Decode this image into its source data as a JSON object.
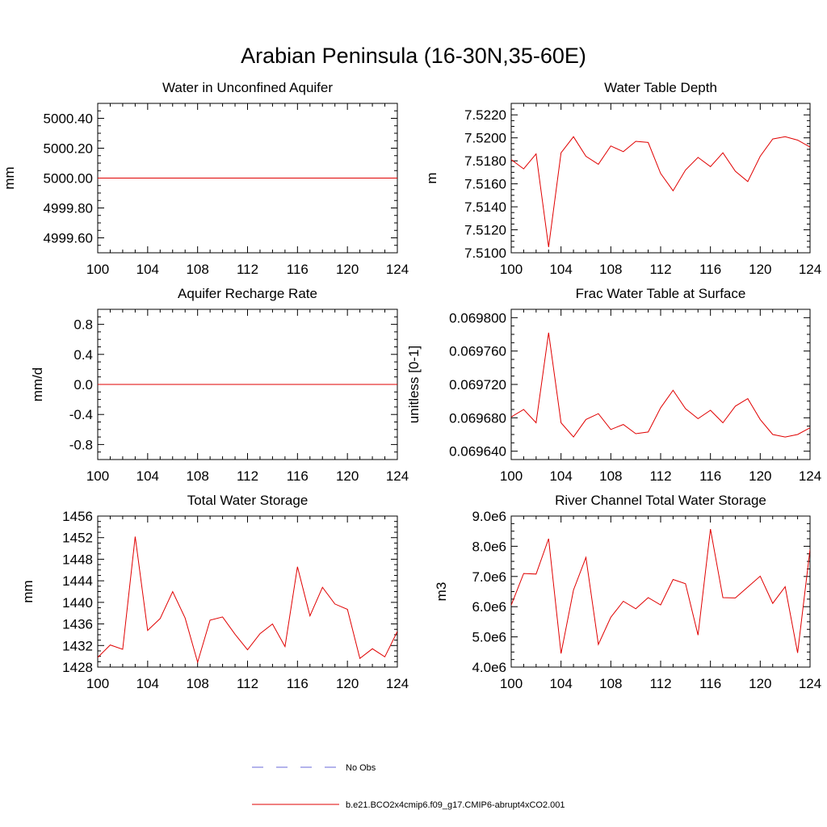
{
  "figure": {
    "title": "Arabian Peninsula (16-30N,35-60E)"
  },
  "legend": {
    "items": [
      {
        "label": "No Obs",
        "color": "#6a6ad8",
        "dash": true
      },
      {
        "label": "b.e21.BCO2x4cmip6.f09_g17.CMIP6-abrupt4xCO2.001",
        "color": "#e00000",
        "dash": false
      }
    ]
  },
  "chart_data": [
    {
      "type": "line",
      "title": "Water in Unconfined Aquifer",
      "ylabel": "mm",
      "xlim": [
        100,
        124
      ],
      "ylim": [
        4999.5,
        5000.5
      ],
      "xticks": [
        "100",
        "104",
        "108",
        "112",
        "116",
        "120",
        "124"
      ],
      "yticks": [
        "4999.60",
        "4999.80",
        "5000.00",
        "5000.20",
        "5000.40"
      ],
      "ytick_values": [
        4999.6,
        4999.8,
        5000.0,
        5000.2,
        5000.4
      ],
      "series": [
        {
          "color": "#e00000",
          "x": [
            100,
            101,
            102,
            103,
            104,
            105,
            106,
            107,
            108,
            109,
            110,
            111,
            112,
            113,
            114,
            115,
            116,
            117,
            118,
            119,
            120,
            121,
            122,
            123,
            124
          ],
          "y": [
            5000,
            5000,
            5000,
            5000,
            5000,
            5000,
            5000,
            5000,
            5000,
            5000,
            5000,
            5000,
            5000,
            5000,
            5000,
            5000,
            5000,
            5000,
            5000,
            5000,
            5000,
            5000,
            5000,
            5000,
            5000
          ]
        }
      ]
    },
    {
      "type": "line",
      "title": "Water Table Depth",
      "ylabel": "m",
      "xlim": [
        100,
        124
      ],
      "ylim": [
        7.51,
        7.523
      ],
      "xticks": [
        "100",
        "104",
        "108",
        "112",
        "116",
        "120",
        "124"
      ],
      "yticks": [
        "7.5100",
        "7.5120",
        "7.5140",
        "7.5160",
        "7.5180",
        "7.5200",
        "7.5220"
      ],
      "ytick_values": [
        7.51,
        7.512,
        7.514,
        7.516,
        7.518,
        7.52,
        7.522
      ],
      "series": [
        {
          "color": "#e00000",
          "x": [
            100,
            101,
            102,
            103,
            104,
            105,
            106,
            107,
            108,
            109,
            110,
            111,
            112,
            113,
            114,
            115,
            116,
            117,
            118,
            119,
            120,
            121,
            122,
            123,
            124
          ],
          "y": [
            7.5181,
            7.5173,
            7.5186,
            7.5105,
            7.5187,
            7.5201,
            7.5184,
            7.5177,
            7.5193,
            7.5188,
            7.5197,
            7.5196,
            7.5169,
            7.5154,
            7.5172,
            7.5183,
            7.5175,
            7.5187,
            7.5171,
            7.5162,
            7.5184,
            7.5199,
            7.5201,
            7.5198,
            7.5192
          ]
        }
      ]
    },
    {
      "type": "line",
      "title": "Aquifer Recharge Rate",
      "ylabel": "mm/d",
      "xlim": [
        100,
        124
      ],
      "ylim": [
        -1.0,
        1.0
      ],
      "xticks": [
        "100",
        "104",
        "108",
        "112",
        "116",
        "120",
        "124"
      ],
      "yticks": [
        "-0.8",
        "-0.4",
        "0.0",
        "0.4",
        "0.8"
      ],
      "ytick_values": [
        -0.8,
        -0.4,
        0.0,
        0.4,
        0.8
      ],
      "series": [
        {
          "color": "#e00000",
          "x": [
            100,
            101,
            102,
            103,
            104,
            105,
            106,
            107,
            108,
            109,
            110,
            111,
            112,
            113,
            114,
            115,
            116,
            117,
            118,
            119,
            120,
            121,
            122,
            123,
            124
          ],
          "y": [
            0,
            0,
            0,
            0,
            0,
            0,
            0,
            0,
            0,
            0,
            0,
            0,
            0,
            0,
            0,
            0,
            0,
            0,
            0,
            0,
            0,
            0,
            0,
            0,
            0
          ]
        }
      ]
    },
    {
      "type": "line",
      "title": "Frac Water Table at Surface",
      "ylabel": "unitless [0-1]",
      "xlim": [
        100,
        124
      ],
      "ylim": [
        0.06963,
        0.06981
      ],
      "xticks": [
        "100",
        "104",
        "108",
        "112",
        "116",
        "120",
        "124"
      ],
      "yticks": [
        "0.069640",
        "0.069680",
        "0.069720",
        "0.069760",
        "0.069800"
      ],
      "ytick_values": [
        0.06964,
        0.06968,
        0.06972,
        0.06976,
        0.0698
      ],
      "series": [
        {
          "color": "#e00000",
          "x": [
            100,
            101,
            102,
            103,
            104,
            105,
            106,
            107,
            108,
            109,
            110,
            111,
            112,
            113,
            114,
            115,
            116,
            117,
            118,
            119,
            120,
            121,
            122,
            123,
            124
          ],
          "y": [
            0.069681,
            0.06969,
            0.069674,
            0.069782,
            0.069674,
            0.069657,
            0.069678,
            0.069685,
            0.069666,
            0.069672,
            0.069661,
            0.069663,
            0.069692,
            0.069713,
            0.069691,
            0.069679,
            0.069689,
            0.069674,
            0.069694,
            0.069703,
            0.069678,
            0.06966,
            0.069657,
            0.06966,
            0.069668
          ]
        }
      ]
    },
    {
      "type": "line",
      "title": "Total Water Storage",
      "ylabel": "mm",
      "xlim": [
        100,
        124
      ],
      "ylim": [
        1428,
        1456
      ],
      "xticks": [
        "100",
        "104",
        "108",
        "112",
        "116",
        "120",
        "124"
      ],
      "yticks": [
        "1428",
        "1432",
        "1436",
        "1440",
        "1444",
        "1448",
        "1452",
        "1456"
      ],
      "ytick_values": [
        1428,
        1432,
        1436,
        1440,
        1444,
        1448,
        1452,
        1456
      ],
      "series": [
        {
          "color": "#e00000",
          "x": [
            100,
            101,
            102,
            103,
            104,
            105,
            106,
            107,
            108,
            109,
            110,
            111,
            112,
            113,
            114,
            115,
            116,
            117,
            118,
            119,
            120,
            121,
            122,
            123,
            124
          ],
          "y": [
            1429.8,
            1432.1,
            1431.3,
            1452.2,
            1434.8,
            1437.0,
            1442.0,
            1437.1,
            1428.9,
            1436.7,
            1437.3,
            1434.1,
            1431.2,
            1434.2,
            1436.0,
            1431.8,
            1446.6,
            1437.5,
            1442.8,
            1439.7,
            1438.7,
            1429.6,
            1431.4,
            1429.9,
            1434.6
          ]
        }
      ]
    },
    {
      "type": "line",
      "title": "River Channel Total Water Storage",
      "ylabel": "m3",
      "xlim": [
        100,
        124
      ],
      "ylim": [
        4000000,
        9000000
      ],
      "xticks": [
        "100",
        "104",
        "108",
        "112",
        "116",
        "120",
        "124"
      ],
      "yticks": [
        "4.0e6",
        "5.0e6",
        "6.0e6",
        "7.0e6",
        "8.0e6",
        "9.0e6"
      ],
      "ytick_values": [
        4000000,
        5000000,
        6000000,
        7000000,
        8000000,
        9000000
      ],
      "series": [
        {
          "color": "#e00000",
          "x": [
            100,
            101,
            102,
            103,
            104,
            105,
            106,
            107,
            108,
            109,
            110,
            111,
            112,
            113,
            114,
            115,
            116,
            117,
            118,
            119,
            120,
            121,
            122,
            123,
            124
          ],
          "y": [
            6050000,
            7100000,
            7080000,
            8250000,
            4450000,
            6550000,
            7630000,
            4750000,
            5650000,
            6180000,
            5930000,
            6300000,
            6060000,
            6900000,
            6760000,
            5060000,
            8570000,
            6300000,
            6290000,
            6650000,
            7010000,
            6110000,
            6660000,
            4470000,
            7900000
          ]
        }
      ]
    }
  ]
}
